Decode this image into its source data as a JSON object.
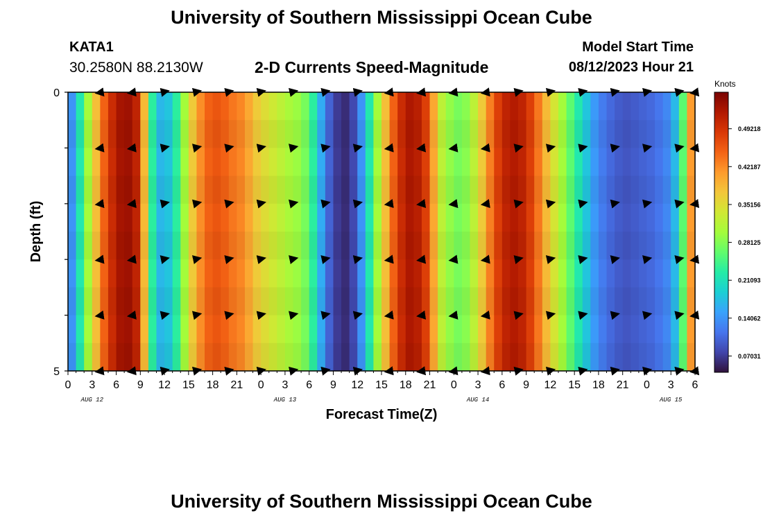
{
  "page": {
    "title": "University of Southern Mississippi Ocean Cube",
    "title_repeat": "University of Southern Mississippi Ocean Cube",
    "station": "KATA1",
    "coordinates": "30.2580N  88.2130W",
    "subtitle": "2-D Currents Speed-Magnitude",
    "model_start_label": "Model Start Time",
    "model_start_value": "08/12/2023 Hour 21"
  },
  "chart_data": {
    "type": "heatmap",
    "title": "2-D Currents Speed-Magnitude",
    "xlabel": "Forecast Time(Z)",
    "ylabel": "Depth (ft)",
    "ylim": [
      0,
      5
    ],
    "y_ticks": [
      "0",
      "5"
    ],
    "x_tick_labels": [
      "0",
      "3",
      "6",
      "9",
      "12",
      "15",
      "18",
      "21",
      "0",
      "3",
      "6",
      "9",
      "12",
      "15",
      "18",
      "21",
      "0",
      "3",
      "6",
      "9",
      "12",
      "15",
      "18",
      "21",
      "0",
      "3",
      "6"
    ],
    "date_labels": [
      {
        "label": "AUG 12",
        "at_hour": 3
      },
      {
        "label": "AUG 13",
        "at_hour": 27
      },
      {
        "label": "AUG 14",
        "at_hour": 51
      },
      {
        "label": "AUG 15",
        "at_hour": 75
      }
    ],
    "x_range_hours": [
      0,
      78
    ],
    "colorbar": {
      "unit": "Knots",
      "ticks": [
        "0.07031",
        "0.14062",
        "0.21093",
        "0.28125",
        "0.35156",
        "0.42187",
        "0.49218"
      ],
      "colors": [
        "#30123b",
        "#4145ab",
        "#4675ed",
        "#39a2fc",
        "#1bcfd4",
        "#24eca6",
        "#61fc6c",
        "#a4fc3b",
        "#d1e834",
        "#f3c63a",
        "#fe9b2d",
        "#f36315",
        "#d93806",
        "#b11901",
        "#7a0403"
      ]
    },
    "speed_profile": {
      "hours": [
        0,
        1,
        2,
        3,
        4,
        5,
        6,
        7,
        8,
        9,
        10,
        11,
        12,
        13,
        14,
        15,
        16,
        17,
        18,
        19,
        20,
        21,
        22,
        23,
        24,
        25,
        26,
        27,
        28,
        29,
        30,
        31,
        32,
        33,
        34,
        35,
        36,
        37,
        38,
        39,
        40,
        41,
        42,
        43,
        44,
        45,
        46,
        47,
        48,
        49,
        50,
        51,
        52,
        53,
        54,
        55,
        56,
        57,
        58,
        59,
        60,
        61,
        62,
        63,
        64,
        65,
        66,
        67,
        68,
        69,
        70,
        71,
        72,
        73,
        74,
        75,
        76,
        77,
        78
      ],
      "knots": [
        0.1,
        0.18,
        0.26,
        0.34,
        0.42,
        0.48,
        0.52,
        0.54,
        0.53,
        0.49,
        0.28,
        0.18,
        0.16,
        0.2,
        0.26,
        0.34,
        0.4,
        0.44,
        0.46,
        0.46,
        0.44,
        0.43,
        0.42,
        0.38,
        0.36,
        0.34,
        0.33,
        0.31,
        0.3,
        0.29,
        0.26,
        0.2,
        0.12,
        0.08,
        0.06,
        0.06,
        0.1,
        0.18,
        0.26,
        0.34,
        0.42,
        0.48,
        0.52,
        0.53,
        0.5,
        0.46,
        0.34,
        0.3,
        0.28,
        0.27,
        0.3,
        0.34,
        0.4,
        0.46,
        0.5,
        0.52,
        0.52,
        0.5,
        0.46,
        0.41,
        0.36,
        0.32,
        0.28,
        0.24,
        0.2,
        0.16,
        0.13,
        0.11,
        0.1,
        0.09,
        0.09,
        0.1,
        0.1,
        0.11,
        0.12,
        0.14,
        0.2,
        0.32,
        0.5
      ]
    },
    "vector_columns": {
      "hours": [
        4,
        8,
        12,
        16,
        20,
        24,
        28,
        32,
        36,
        40,
        44,
        48,
        52,
        56,
        60,
        64,
        68,
        72,
        76,
        78
      ],
      "directions": [
        "W",
        "W",
        "E",
        "E",
        "E",
        "E",
        "E",
        "E",
        "E",
        "W",
        "W",
        "W",
        "W",
        "E",
        "E",
        "E",
        "E",
        "E",
        "E",
        "W"
      ]
    },
    "vector_depth_rows_ft": [
      0,
      1,
      2,
      3,
      4,
      5
    ]
  }
}
